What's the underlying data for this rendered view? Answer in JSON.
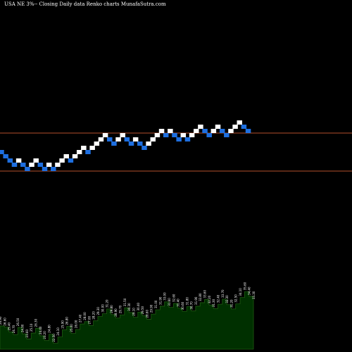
{
  "header": {
    "title": "USA NE 3%-- Closing Daily data  Renko  charts MunafaSutra.com"
  },
  "colors": {
    "background": "#000000",
    "up_brick": "#ffffff",
    "down_brick": "#1e6fe0",
    "reference_line": "#b4502d",
    "volume_fill": "#003000",
    "volume_edge": "#1f5a12",
    "label_text": "#ffffff"
  },
  "chart_data": [
    {
      "type": "renko",
      "title": "USA NE 3%-- Closing Daily data  Renko  charts MunafaSutra.com",
      "xlabel": "",
      "ylabel": "",
      "grid": false,
      "brick_size_levels": 1,
      "bricks": [
        {
          "direction": "down",
          "level": 30
        },
        {
          "direction": "down",
          "level": 29
        },
        {
          "direction": "down",
          "level": 28
        },
        {
          "direction": "down",
          "level": 27
        },
        {
          "direction": "up",
          "level": 28
        },
        {
          "direction": "down",
          "level": 27
        },
        {
          "direction": "down",
          "level": 26
        },
        {
          "direction": "up",
          "level": 27
        },
        {
          "direction": "up",
          "level": 28
        },
        {
          "direction": "down",
          "level": 27
        },
        {
          "direction": "down",
          "level": 26
        },
        {
          "direction": "up",
          "level": 27
        },
        {
          "direction": "down",
          "level": 26
        },
        {
          "direction": "up",
          "level": 27
        },
        {
          "direction": "up",
          "level": 28
        },
        {
          "direction": "up",
          "level": 29
        },
        {
          "direction": "down",
          "level": 28
        },
        {
          "direction": "up",
          "level": 29
        },
        {
          "direction": "up",
          "level": 30
        },
        {
          "direction": "up",
          "level": 31
        },
        {
          "direction": "down",
          "level": 30
        },
        {
          "direction": "up",
          "level": 31
        },
        {
          "direction": "up",
          "level": 32
        },
        {
          "direction": "up",
          "level": 33
        },
        {
          "direction": "up",
          "level": 34
        },
        {
          "direction": "down",
          "level": 33
        },
        {
          "direction": "down",
          "level": 32
        },
        {
          "direction": "up",
          "level": 33
        },
        {
          "direction": "up",
          "level": 34
        },
        {
          "direction": "down",
          "level": 33
        },
        {
          "direction": "down",
          "level": 32
        },
        {
          "direction": "up",
          "level": 33
        },
        {
          "direction": "down",
          "level": 32
        },
        {
          "direction": "down",
          "level": 31
        },
        {
          "direction": "up",
          "level": 32
        },
        {
          "direction": "up",
          "level": 33
        },
        {
          "direction": "up",
          "level": 34
        },
        {
          "direction": "up",
          "level": 35
        },
        {
          "direction": "down",
          "level": 34
        },
        {
          "direction": "up",
          "level": 35
        },
        {
          "direction": "down",
          "level": 34
        },
        {
          "direction": "down",
          "level": 33
        },
        {
          "direction": "up",
          "level": 34
        },
        {
          "direction": "down",
          "level": 33
        },
        {
          "direction": "up",
          "level": 34
        },
        {
          "direction": "up",
          "level": 35
        },
        {
          "direction": "up",
          "level": 36
        },
        {
          "direction": "down",
          "level": 35
        },
        {
          "direction": "down",
          "level": 34
        },
        {
          "direction": "up",
          "level": 35
        },
        {
          "direction": "up",
          "level": 36
        },
        {
          "direction": "down",
          "level": 35
        },
        {
          "direction": "down",
          "level": 34
        },
        {
          "direction": "up",
          "level": 35
        },
        {
          "direction": "up",
          "level": 36
        },
        {
          "direction": "up",
          "level": 37
        },
        {
          "direction": "down",
          "level": 36
        },
        {
          "direction": "down",
          "level": 35
        }
      ],
      "reference_lines": [
        {
          "level": 34.5
        },
        {
          "level": 25.5
        }
      ],
      "volume_profile": [
        {
          "value": 26.9,
          "label": "26.90"
        },
        {
          "value": 26.6,
          "label": "26.60"
        },
        {
          "value": 25.4,
          "label": "25.40"
        },
        {
          "value": 24.7,
          "label": "24.70"
        },
        {
          "value": 26.5,
          "label": "26.50"
        },
        {
          "value": 24.9,
          "label": "24.90"
        },
        {
          "value": 23.6,
          "label": "23.60"
        },
        {
          "value": 25.1,
          "label": "25.10"
        },
        {
          "value": 26.3,
          "label": "26.30"
        },
        {
          "value": 24.4,
          "label": "24.40"
        },
        {
          "value": 23.2,
          "label": "23.20"
        },
        {
          "value": 24.8,
          "label": "24.80"
        },
        {
          "value": 22.5,
          "label": "22.50"
        },
        {
          "value": 24.1,
          "label": "24.10"
        },
        {
          "value": 25.9,
          "label": "25.90"
        },
        {
          "value": 26.8,
          "label": "26.80"
        },
        {
          "value": 25.0,
          "label": "25.00"
        },
        {
          "value": 26.0,
          "label": "26.00"
        },
        {
          "value": 27.4,
          "label": "27.40"
        },
        {
          "value": 28.0,
          "label": "28.00"
        },
        {
          "value": 27.0,
          "label": "27.00"
        },
        {
          "value": 28.2,
          "label": "28.20"
        },
        {
          "value": 29.3,
          "label": "29.30"
        },
        {
          "value": 30.0,
          "label": "30.00"
        },
        {
          "value": 31.2,
          "label": "31.20"
        },
        {
          "value": 29.8,
          "label": "29.80"
        },
        {
          "value": 28.9,
          "label": "28.90"
        },
        {
          "value": 29.7,
          "label": "29.70"
        },
        {
          "value": 31.5,
          "label": "31.50"
        },
        {
          "value": 30.3,
          "label": "30.30"
        },
        {
          "value": 29.1,
          "label": "29.10"
        },
        {
          "value": 30.4,
          "label": "30.40"
        },
        {
          "value": 29.5,
          "label": "29.50"
        },
        {
          "value": 28.6,
          "label": "28.60"
        },
        {
          "value": 29.9,
          "label": "29.90"
        },
        {
          "value": 31.0,
          "label": "31.00"
        },
        {
          "value": 31.9,
          "label": "31.90"
        },
        {
          "value": 33.0,
          "label": "33.00"
        },
        {
          "value": 31.6,
          "label": "31.60"
        },
        {
          "value": 32.6,
          "label": "32.60"
        },
        {
          "value": 31.4,
          "label": "31.40"
        },
        {
          "value": 30.6,
          "label": "30.60"
        },
        {
          "value": 31.8,
          "label": "31.80"
        },
        {
          "value": 30.7,
          "label": "30.70"
        },
        {
          "value": 31.9,
          "label": "31.90"
        },
        {
          "value": 32.8,
          "label": "32.80"
        },
        {
          "value": 33.6,
          "label": "33.60"
        },
        {
          "value": 32.2,
          "label": "32.20"
        },
        {
          "value": 31.3,
          "label": "31.30"
        },
        {
          "value": 32.4,
          "label": "32.40"
        },
        {
          "value": 33.7,
          "label": "33.70"
        },
        {
          "value": 32.3,
          "label": "32.30"
        },
        {
          "value": 31.2,
          "label": "31.20"
        },
        {
          "value": 32.5,
          "label": "32.50"
        },
        {
          "value": 34.1,
          "label": "34.10"
        },
        {
          "value": 35.6,
          "label": "35.60"
        },
        {
          "value": 34.4,
          "label": "34.40"
        },
        {
          "value": 33.3,
          "label": "33.30"
        }
      ]
    }
  ]
}
